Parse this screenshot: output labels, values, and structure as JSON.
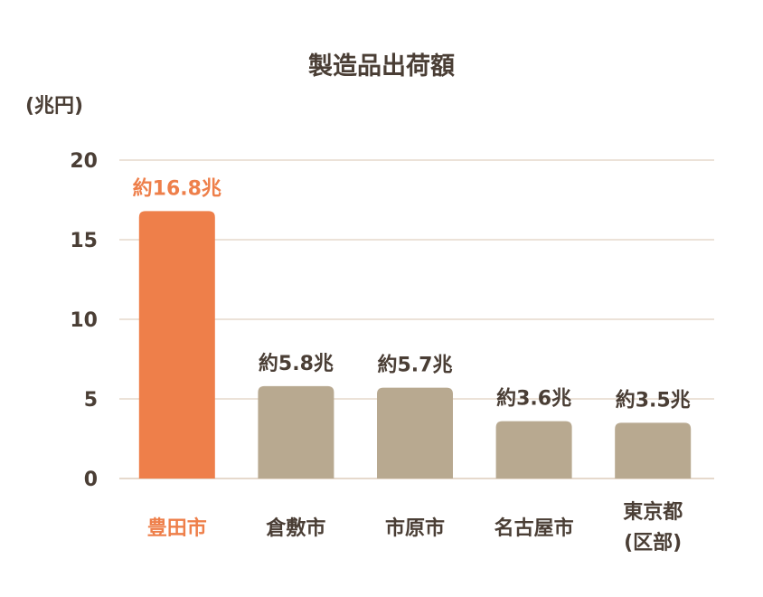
{
  "chart_data": {
    "type": "bar",
    "title": "製造品出荷額",
    "ylabel": "(兆円)",
    "xlabel": "",
    "ylim": [
      0,
      20
    ],
    "yticks": [
      0,
      5,
      10,
      15,
      20
    ],
    "grid": true,
    "categories": [
      [
        "豊田市"
      ],
      [
        "倉敷市"
      ],
      [
        "市原市"
      ],
      [
        "名古屋市"
      ],
      [
        "東京都",
        "(区部)"
      ]
    ],
    "values": [
      16.8,
      5.8,
      5.7,
      3.6,
      3.5
    ],
    "value_labels": [
      "約16.8兆",
      "約5.8兆",
      "約5.7兆",
      "約3.6兆",
      "約3.5兆"
    ],
    "highlight_index": 0,
    "colors": {
      "highlight": "#ee7f4a",
      "bar": "#b8a990",
      "grid": "#e6d9cc",
      "text": "#4a3e35"
    }
  }
}
